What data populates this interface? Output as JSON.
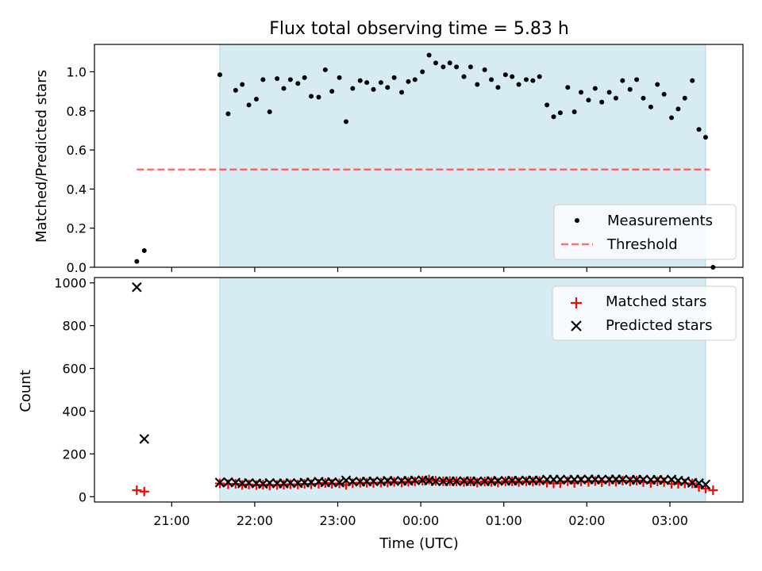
{
  "chart_data": [
    {
      "type": "scatter",
      "title": "Flux total observing time = 5.83 h",
      "xlabel": "",
      "ylabel": "Matched/Predicted stars",
      "ylim": [
        0,
        1.14
      ],
      "yticks": [
        "0.0",
        "0.2",
        "0.4",
        "0.6",
        "0.8",
        "1.0"
      ],
      "xlim": [
        20.07,
        27.88
      ],
      "legend_position": "lower-right",
      "shaded_interval": [
        21.58,
        27.43
      ],
      "threshold": {
        "name": "Threshold",
        "value": 0.5,
        "x_range": [
          20.58,
          27.48
        ]
      },
      "series": [
        {
          "name": "Measurements",
          "points": [
            [
              20.58,
              0.03
            ],
            [
              20.67,
              0.085
            ],
            [
              21.58,
              0.985
            ],
            [
              21.68,
              0.785
            ],
            [
              21.77,
              0.905
            ],
            [
              21.85,
              0.935
            ],
            [
              21.93,
              0.83
            ],
            [
              22.02,
              0.86
            ],
            [
              22.1,
              0.96
            ],
            [
              22.18,
              0.795
            ],
            [
              22.27,
              0.965
            ],
            [
              22.35,
              0.915
            ],
            [
              22.43,
              0.96
            ],
            [
              22.52,
              0.94
            ],
            [
              22.6,
              0.97
            ],
            [
              22.68,
              0.875
            ],
            [
              22.77,
              0.87
            ],
            [
              22.85,
              1.01
            ],
            [
              22.93,
              0.9
            ],
            [
              23.02,
              0.97
            ],
            [
              23.1,
              0.745
            ],
            [
              23.18,
              0.915
            ],
            [
              23.27,
              0.955
            ],
            [
              23.35,
              0.945
            ],
            [
              23.43,
              0.91
            ],
            [
              23.52,
              0.945
            ],
            [
              23.6,
              0.92
            ],
            [
              23.68,
              0.97
            ],
            [
              23.77,
              0.895
            ],
            [
              23.85,
              0.95
            ],
            [
              23.93,
              0.96
            ],
            [
              24.02,
              1.0
            ],
            [
              24.1,
              1.085
            ],
            [
              24.18,
              1.045
            ],
            [
              24.27,
              1.025
            ],
            [
              24.35,
              1.045
            ],
            [
              24.43,
              1.025
            ],
            [
              24.52,
              0.975
            ],
            [
              24.6,
              1.025
            ],
            [
              24.68,
              0.935
            ],
            [
              24.77,
              1.01
            ],
            [
              24.85,
              0.96
            ],
            [
              24.93,
              0.92
            ],
            [
              25.02,
              0.985
            ],
            [
              25.1,
              0.975
            ],
            [
              25.18,
              0.935
            ],
            [
              25.27,
              0.96
            ],
            [
              25.35,
              0.955
            ],
            [
              25.43,
              0.975
            ],
            [
              25.52,
              0.83
            ],
            [
              25.6,
              0.77
            ],
            [
              25.68,
              0.79
            ],
            [
              25.77,
              0.92
            ],
            [
              25.85,
              0.795
            ],
            [
              25.93,
              0.895
            ],
            [
              26.02,
              0.855
            ],
            [
              26.1,
              0.915
            ],
            [
              26.18,
              0.845
            ],
            [
              26.27,
              0.895
            ],
            [
              26.35,
              0.865
            ],
            [
              26.43,
              0.955
            ],
            [
              26.52,
              0.91
            ],
            [
              26.6,
              0.96
            ],
            [
              26.68,
              0.865
            ],
            [
              26.77,
              0.82
            ],
            [
              26.85,
              0.935
            ],
            [
              26.93,
              0.885
            ],
            [
              27.02,
              0.765
            ],
            [
              27.1,
              0.81
            ],
            [
              27.18,
              0.865
            ],
            [
              27.27,
              0.955
            ],
            [
              27.35,
              0.705
            ],
            [
              27.43,
              0.665
            ],
            [
              27.52,
              0.0
            ]
          ]
        }
      ]
    },
    {
      "type": "scatter",
      "title": "",
      "xlabel": "Time (UTC)",
      "ylabel": "Count",
      "ylim": [
        -25,
        1025
      ],
      "yticks": [
        "0",
        "200",
        "400",
        "600",
        "800",
        "1000"
      ],
      "xlim": [
        20.07,
        27.88
      ],
      "xticks": [
        {
          "value": 21,
          "label": "21:00"
        },
        {
          "value": 22,
          "label": "22:00"
        },
        {
          "value": 23,
          "label": "23:00"
        },
        {
          "value": 24,
          "label": "00:00"
        },
        {
          "value": 25,
          "label": "01:00"
        },
        {
          "value": 26,
          "label": "02:00"
        },
        {
          "value": 27,
          "label": "03:00"
        }
      ],
      "legend_position": "upper-right",
      "shaded_interval": [
        21.58,
        27.43
      ],
      "series": [
        {
          "name": "Matched stars",
          "points": [
            [
              20.58,
              30
            ],
            [
              20.67,
              24
            ],
            [
              21.58,
              62
            ],
            [
              21.68,
              58
            ],
            [
              21.77,
              60
            ],
            [
              21.85,
              55
            ],
            [
              21.93,
              57
            ],
            [
              22.02,
              54
            ],
            [
              22.1,
              56
            ],
            [
              22.18,
              52
            ],
            [
              22.27,
              55
            ],
            [
              22.35,
              56
            ],
            [
              22.43,
              58
            ],
            [
              22.52,
              57
            ],
            [
              22.6,
              60
            ],
            [
              22.68,
              58
            ],
            [
              22.77,
              60
            ],
            [
              22.85,
              64
            ],
            [
              22.93,
              60
            ],
            [
              23.02,
              62
            ],
            [
              23.1,
              55
            ],
            [
              23.18,
              63
            ],
            [
              23.27,
              65
            ],
            [
              23.35,
              65
            ],
            [
              23.43,
              64
            ],
            [
              23.52,
              66
            ],
            [
              23.6,
              66
            ],
            [
              23.68,
              69
            ],
            [
              23.77,
              66
            ],
            [
              23.85,
              70
            ],
            [
              23.93,
              71
            ],
            [
              24.02,
              75
            ],
            [
              24.1,
              80
            ],
            [
              24.18,
              74
            ],
            [
              24.27,
              72
            ],
            [
              24.35,
              73
            ],
            [
              24.43,
              72
            ],
            [
              24.52,
              69
            ],
            [
              24.6,
              72
            ],
            [
              24.68,
              66
            ],
            [
              24.77,
              71
            ],
            [
              24.85,
              69
            ],
            [
              24.93,
              66
            ],
            [
              25.02,
              72
            ],
            [
              25.1,
              72
            ],
            [
              25.18,
              69
            ],
            [
              25.27,
              72
            ],
            [
              25.35,
              71
            ],
            [
              25.43,
              73
            ],
            [
              25.52,
              65
            ],
            [
              25.6,
              62
            ],
            [
              25.68,
              63
            ],
            [
              25.77,
              72
            ],
            [
              25.85,
              64
            ],
            [
              25.93,
              71
            ],
            [
              26.02,
              69
            ],
            [
              26.1,
              73
            ],
            [
              26.18,
              68
            ],
            [
              26.27,
              72
            ],
            [
              26.35,
              70
            ],
            [
              26.43,
              75
            ],
            [
              26.52,
              71
            ],
            [
              26.6,
              75
            ],
            [
              26.68,
              68
            ],
            [
              26.77,
              64
            ],
            [
              26.85,
              72
            ],
            [
              26.93,
              68
            ],
            [
              27.02,
              60
            ],
            [
              27.1,
              60
            ],
            [
              27.18,
              62
            ],
            [
              27.27,
              62
            ],
            [
              27.35,
              45
            ],
            [
              27.43,
              38
            ],
            [
              27.52,
              30
            ]
          ]
        },
        {
          "name": "Predicted stars",
          "points": [
            [
              20.58,
              980
            ],
            [
              20.67,
              270
            ],
            [
              21.58,
              66
            ],
            [
              21.68,
              68
            ],
            [
              21.77,
              66
            ],
            [
              21.85,
              62
            ],
            [
              21.93,
              64
            ],
            [
              22.02,
              62
            ],
            [
              22.1,
              60
            ],
            [
              22.18,
              64
            ],
            [
              22.27,
              62
            ],
            [
              22.35,
              62
            ],
            [
              22.43,
              64
            ],
            [
              22.52,
              63
            ],
            [
              22.6,
              66
            ],
            [
              22.68,
              67
            ],
            [
              22.77,
              70
            ],
            [
              22.85,
              67
            ],
            [
              22.93,
              68
            ],
            [
              23.02,
              66
            ],
            [
              23.1,
              76
            ],
            [
              23.18,
              71
            ],
            [
              23.27,
              70
            ],
            [
              23.35,
              71
            ],
            [
              23.43,
              72
            ],
            [
              23.52,
              72
            ],
            [
              23.6,
              74
            ],
            [
              23.68,
              73
            ],
            [
              23.77,
              74
            ],
            [
              23.85,
              74
            ],
            [
              23.93,
              76
            ],
            [
              24.02,
              77
            ],
            [
              24.1,
              75
            ],
            [
              24.18,
              72
            ],
            [
              24.27,
              72
            ],
            [
              24.35,
              72
            ],
            [
              24.43,
              72
            ],
            [
              24.52,
              73
            ],
            [
              24.6,
              72
            ],
            [
              24.68,
              72
            ],
            [
              24.77,
              72
            ],
            [
              24.85,
              73
            ],
            [
              24.93,
              74
            ],
            [
              25.02,
              74
            ],
            [
              25.1,
              75
            ],
            [
              25.18,
              75
            ],
            [
              25.27,
              76
            ],
            [
              25.35,
              76
            ],
            [
              25.43,
              76
            ],
            [
              25.52,
              80
            ],
            [
              25.6,
              80
            ],
            [
              25.68,
              80
            ],
            [
              25.77,
              79
            ],
            [
              25.85,
              80
            ],
            [
              25.93,
              80
            ],
            [
              26.02,
              81
            ],
            [
              26.1,
              80
            ],
            [
              26.18,
              80
            ],
            [
              26.27,
              80
            ],
            [
              26.35,
              81
            ],
            [
              26.43,
              80
            ],
            [
              26.52,
              79
            ],
            [
              26.6,
              79
            ],
            [
              26.68,
              80
            ],
            [
              26.77,
              79
            ],
            [
              26.85,
              79
            ],
            [
              26.93,
              78
            ],
            [
              27.02,
              80
            ],
            [
              27.1,
              75
            ],
            [
              27.18,
              72
            ],
            [
              27.27,
              65
            ],
            [
              27.35,
              63
            ],
            [
              27.43,
              57
            ]
          ]
        }
      ]
    }
  ]
}
